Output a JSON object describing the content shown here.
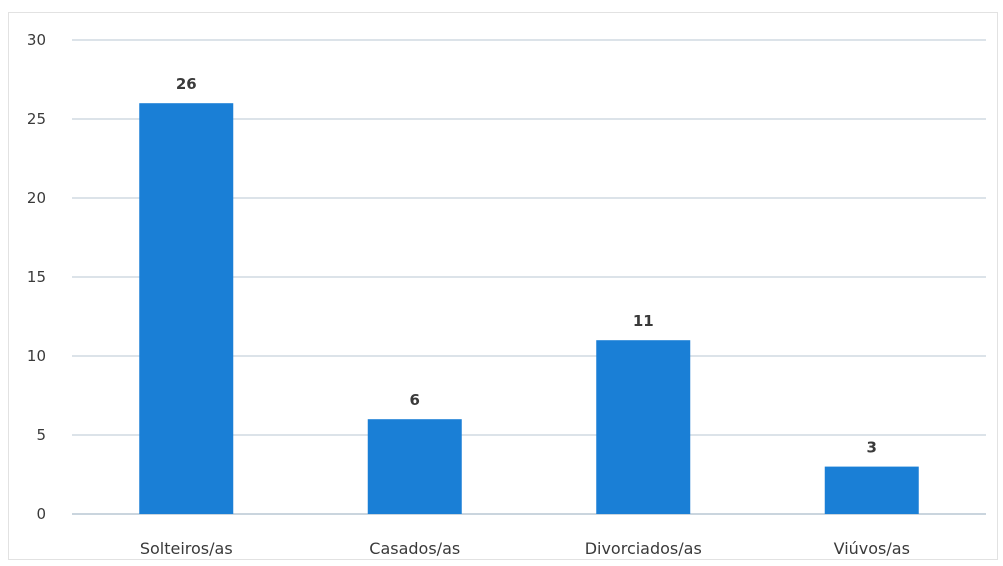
{
  "chart_data": {
    "type": "bar",
    "title": "",
    "xlabel": "",
    "ylabel": "",
    "categories": [
      "Solteiros/as",
      "Casados/as",
      "Divorciados/as",
      "Viúvos/as"
    ],
    "values": [
      26,
      6,
      11,
      3
    ],
    "data_labels": [
      "26",
      "6",
      "11",
      "3"
    ],
    "ylim": [
      0,
      30
    ],
    "yticks": [
      0,
      5,
      10,
      15,
      20,
      25,
      30
    ],
    "grid": true,
    "legend": "none",
    "bar_color": "#1a7fd6",
    "grid_color": "#b9c7d3"
  }
}
